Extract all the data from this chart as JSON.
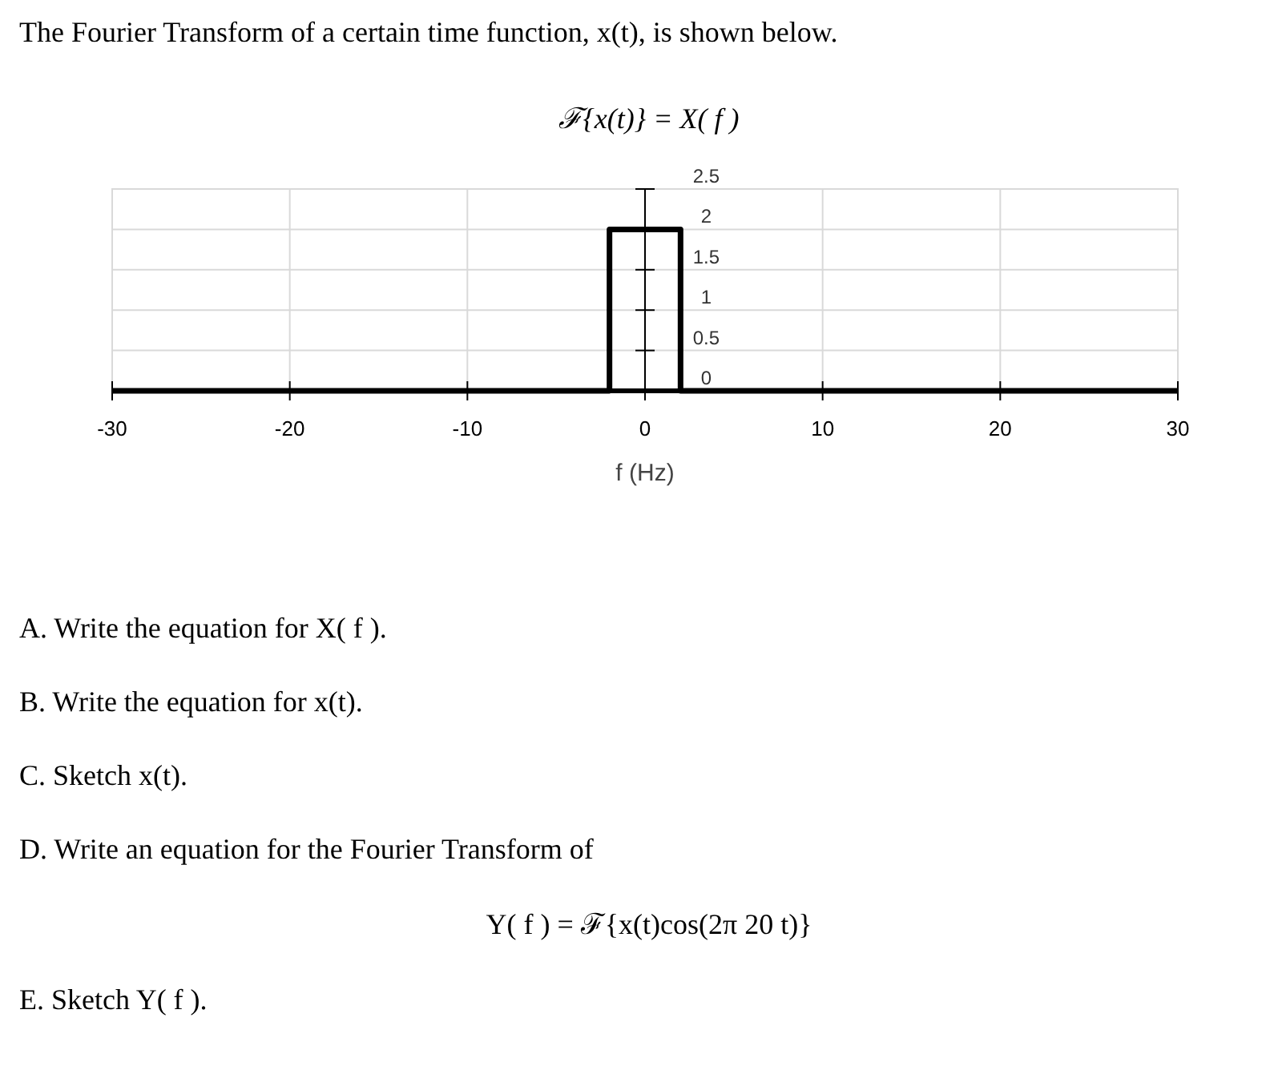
{
  "chart_data": {
    "type": "line",
    "title": "ℱ{x(t)} = X( f )",
    "xlabel": "f (Hz)",
    "x": [
      -30,
      -2,
      -2,
      2,
      2,
      30
    ],
    "series": [
      {
        "color": "#000000",
        "values": [
          0,
          0,
          2,
          2,
          0,
          0
        ]
      }
    ],
    "xlim": [
      -30,
      30
    ],
    "xticks": [
      -30,
      -20,
      -10,
      0,
      10,
      20,
      30
    ],
    "ylim": [
      0,
      2.5
    ],
    "yticks": [
      0,
      0.5,
      1,
      1.5,
      2,
      2.5
    ],
    "grid": true,
    "marker": "none",
    "line_style": "solid",
    "annotations": [
      "The Fourier Transform of a certain time function, x(t), is shown below.",
      "A.  Write the equation for X( f ).",
      "B.  Write the equation for x(t).",
      "C.  Sketch x(t).",
      "D.  Write an equation for the Fourier Transform of",
      "Y( f ) = ℱ{x(t)cos(2π 20 t)}",
      "E.  Sketch Y( f )."
    ]
  }
}
